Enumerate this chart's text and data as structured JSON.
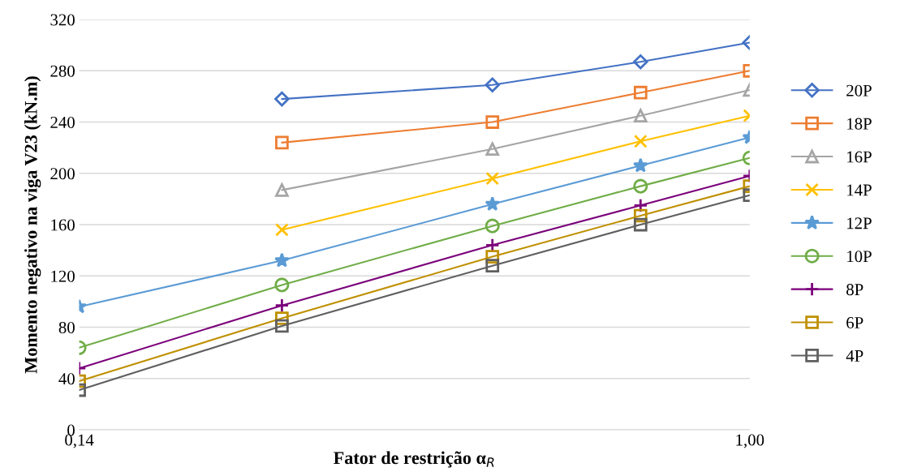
{
  "chart_data": {
    "type": "line",
    "xlabel": "Fator de restrição α$_{R}$",
    "ylabel": "Momento negativo na viga V23 (kN.m)",
    "x": [
      0.14,
      0.4,
      0.67,
      0.86,
      1.0
    ],
    "xlim": [
      0.14,
      1.0
    ],
    "xticks": [
      {
        "value": 0.14,
        "label": "0,14"
      },
      {
        "value": 1.0,
        "label": "1,00"
      }
    ],
    "ylim": [
      0,
      320
    ],
    "yticks": [
      0,
      40,
      80,
      120,
      160,
      200,
      240,
      280,
      320
    ],
    "grid": "y",
    "legend": "right",
    "series": [
      {
        "name": "20P",
        "color": "#4472c4",
        "marker": "diamond",
        "values": [
          null,
          258,
          269,
          287,
          302
        ]
      },
      {
        "name": "18P",
        "color": "#ed7d31",
        "marker": "square",
        "values": [
          null,
          224,
          240,
          263,
          280
        ]
      },
      {
        "name": "16P",
        "color": "#a5a5a5",
        "marker": "triangle",
        "values": [
          null,
          187,
          219,
          245,
          265
        ]
      },
      {
        "name": "14P",
        "color": "#ffc000",
        "marker": "x",
        "values": [
          null,
          156,
          196,
          225,
          245
        ]
      },
      {
        "name": "12P",
        "color": "#5b9bd5",
        "marker": "star",
        "values": [
          96,
          132,
          176,
          206,
          228
        ]
      },
      {
        "name": "10P",
        "color": "#70ad47",
        "marker": "circle",
        "values": [
          64,
          113,
          159,
          190,
          212
        ]
      },
      {
        "name": "8P",
        "color": "#7b007b",
        "marker": "cross",
        "values": [
          48,
          97,
          144,
          175,
          198
        ]
      },
      {
        "name": "6P",
        "color": "#bf9000",
        "marker": "square",
        "values": [
          38,
          87,
          135,
          167,
          190
        ]
      },
      {
        "name": "4P",
        "color": "#5f5f5f",
        "marker": "square",
        "values": [
          31,
          81,
          128,
          160,
          183
        ]
      }
    ]
  }
}
